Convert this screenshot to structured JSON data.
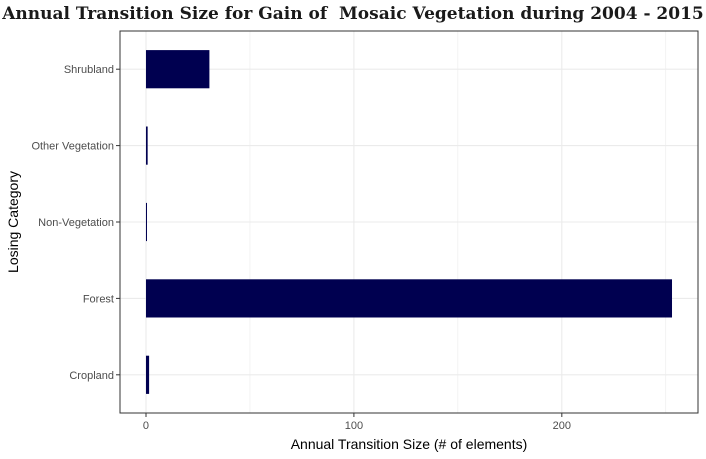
{
  "chart_data": {
    "type": "bar",
    "orientation": "horizontal",
    "title": "Annual Transition Size for Gain of  Mosaic Vegetation during 2004 - 2015",
    "xlabel": "Annual Transition Size (# of elements)",
    "ylabel": "Losing Category",
    "categories": [
      "Cropland",
      "Forest",
      "Non-Vegetation",
      "Other Vegetation",
      "Shrubland"
    ],
    "values": [
      1.5,
      253,
      0.3,
      0.8,
      30.5
    ],
    "xlim": [
      -12.5,
      265.5
    ],
    "xticks": [
      0,
      100,
      200
    ],
    "grid": true,
    "bar_color": "#000050",
    "legend": "none"
  }
}
